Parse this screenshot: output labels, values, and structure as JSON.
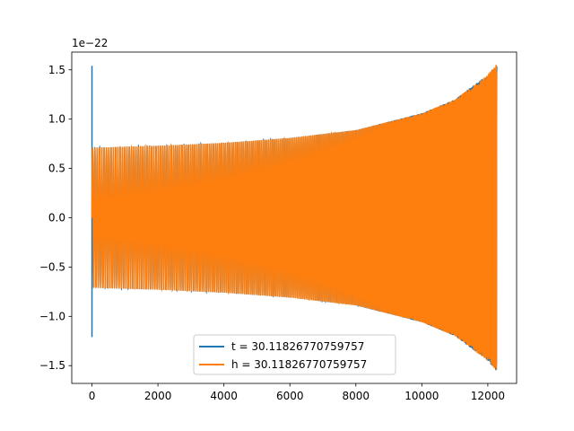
{
  "chart_data": {
    "type": "line",
    "title": "",
    "xlabel": "",
    "ylabel": "",
    "xlim": [
      -613,
      12873
    ],
    "ylim": [
      -1.68,
      1.68
    ],
    "y_offset_text": "1e−22",
    "x_ticks": [
      0,
      2000,
      4000,
      6000,
      8000,
      10000,
      12000
    ],
    "x_tick_labels": [
      "0",
      "2000",
      "4000",
      "6000",
      "8000",
      "10000",
      "12000"
    ],
    "y_ticks": [
      -1.5,
      -1.0,
      -0.5,
      0.0,
      0.5,
      1.0,
      1.5
    ],
    "y_tick_labels": [
      "−1.5",
      "−1.0",
      "−0.5",
      "0.0",
      "0.5",
      "1.0",
      "1.5"
    ],
    "grid": false,
    "legend_position": "lower center",
    "series": [
      {
        "name": "t = 30.11826770759757",
        "color": "#1f77b4",
        "x_start": 0,
        "x_end": 12270,
        "initial_spike": [
          1.54,
          -1.21
        ],
        "envelope": [
          [
            0,
            0.71
          ],
          [
            2000,
            0.73
          ],
          [
            4000,
            0.76
          ],
          [
            6000,
            0.81
          ],
          [
            8000,
            0.89
          ],
          [
            10000,
            1.06
          ],
          [
            11000,
            1.2
          ],
          [
            12000,
            1.45
          ],
          [
            12270,
            1.56
          ]
        ]
      },
      {
        "name": "h = 30.11826770759757",
        "color": "#ff7f0e",
        "x_start": 0,
        "x_end": 12270,
        "envelope": [
          [
            0,
            0.71
          ],
          [
            2000,
            0.73
          ],
          [
            4000,
            0.76
          ],
          [
            6000,
            0.81
          ],
          [
            8000,
            0.89
          ],
          [
            10000,
            1.06
          ],
          [
            11000,
            1.2
          ],
          [
            12000,
            1.45
          ],
          [
            12270,
            1.56
          ]
        ]
      }
    ]
  }
}
